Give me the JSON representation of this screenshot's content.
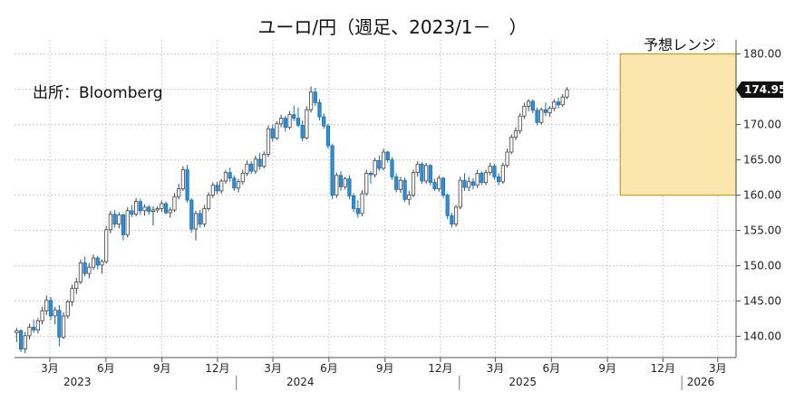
{
  "title": "ユーロ/円（週足、2023/1－　）",
  "source_note": "出所：Bloomberg",
  "range_label": "予想レンジ",
  "last_value_label": "174.95",
  "colors": {
    "up_fill": "#ffffff",
    "up_stroke": "#444444",
    "down_fill": "#2f8ed8",
    "down_stroke": "#1c6fb0",
    "forecast_fill": "#fbe7ad",
    "forecast_stroke": "#c8a02a",
    "grid": "#cfcfcf",
    "last_badge": "#111111"
  },
  "chart_data": {
    "type": "candlestick",
    "title": "ユーロ/円（週足、2023/1－　）",
    "frequency": "weekly",
    "ylim": [
      137,
      182
    ],
    "y_ticks": [
      "140.00",
      "145.00",
      "150.00",
      "155.00",
      "160.00",
      "165.00",
      "170.00",
      "175.00",
      "180.00"
    ],
    "x_ticks": [
      {
        "date": "2023-03-01",
        "label": "3月"
      },
      {
        "date": "2023-06-01",
        "label": "6月"
      },
      {
        "date": "2023-09-01",
        "label": "9月"
      },
      {
        "date": "2023-12-01",
        "label": "12月"
      },
      {
        "date": "2024-03-01",
        "label": "3月"
      },
      {
        "date": "2024-06-01",
        "label": "6月"
      },
      {
        "date": "2024-09-01",
        "label": "9月"
      },
      {
        "date": "2024-12-01",
        "label": "12月"
      },
      {
        "date": "2025-03-01",
        "label": "3月"
      },
      {
        "date": "2025-06-01",
        "label": "6月"
      },
      {
        "date": "2025-09-01",
        "label": "9月"
      },
      {
        "date": "2025-12-01",
        "label": "12月"
      },
      {
        "date": "2026-03-01",
        "label": "3月"
      }
    ],
    "year_labels": [
      {
        "date": "2023-04-15",
        "label": "2023"
      },
      {
        "date": "2024-04-15",
        "label": "2024"
      },
      {
        "date": "2025-04-15",
        "label": "2025"
      },
      {
        "date": "2026-02-01",
        "label": "2026"
      }
    ],
    "year_dividers": [
      "2024-01-01",
      "2025-01-01",
      "2026-01-01"
    ],
    "x_start": "2023-01-02",
    "x_end": "2026-03-31",
    "forecast_range": {
      "start": "2025-09-22",
      "end": "2026-03-31",
      "low": 160.0,
      "high": 180.0
    },
    "last_value": 174.95,
    "start_date": "2023-01-02",
    "ohlc": [
      [
        140.5,
        141.2,
        139.2,
        140.8
      ],
      [
        140.8,
        141.0,
        137.8,
        138.2
      ],
      [
        138.2,
        140.6,
        137.6,
        140.1
      ],
      [
        140.1,
        141.8,
        139.6,
        141.3
      ],
      [
        141.3,
        142.4,
        140.5,
        140.9
      ],
      [
        140.9,
        142.6,
        140.4,
        142.2
      ],
      [
        142.2,
        144.2,
        141.7,
        143.6
      ],
      [
        143.6,
        145.8,
        143.0,
        145.1
      ],
      [
        145.1,
        145.6,
        142.3,
        142.9
      ],
      [
        142.9,
        144.2,
        141.7,
        143.7
      ],
      [
        143.7,
        144.4,
        138.6,
        139.9
      ],
      [
        139.9,
        143.4,
        139.6,
        142.9
      ],
      [
        142.9,
        145.2,
        142.5,
        144.9
      ],
      [
        144.9,
        147.3,
        144.3,
        146.8
      ],
      [
        146.8,
        148.3,
        146.0,
        147.7
      ],
      [
        147.7,
        150.9,
        147.4,
        150.4
      ],
      [
        150.4,
        151.3,
        148.5,
        148.9
      ],
      [
        148.9,
        150.4,
        148.2,
        149.8
      ],
      [
        149.8,
        151.6,
        149.4,
        151.1
      ],
      [
        151.1,
        151.4,
        149.5,
        150.1
      ],
      [
        150.1,
        150.9,
        148.9,
        150.6
      ],
      [
        150.6,
        155.6,
        150.3,
        155.1
      ],
      [
        155.1,
        157.8,
        154.6,
        157.3
      ],
      [
        157.3,
        157.9,
        155.4,
        155.9
      ],
      [
        155.9,
        157.6,
        155.3,
        157.2
      ],
      [
        157.2,
        157.4,
        153.6,
        154.4
      ],
      [
        154.4,
        158.3,
        154.0,
        157.8
      ],
      [
        157.8,
        158.6,
        156.9,
        157.3
      ],
      [
        157.3,
        159.6,
        157.0,
        159.1
      ],
      [
        159.1,
        159.5,
        157.2,
        157.8
      ],
      [
        157.8,
        158.7,
        157.1,
        158.3
      ],
      [
        158.3,
        158.6,
        157.2,
        157.7
      ],
      [
        157.7,
        158.4,
        155.7,
        157.9
      ],
      [
        157.9,
        158.4,
        157.5,
        158.1
      ],
      [
        158.1,
        159.2,
        157.6,
        158.8
      ],
      [
        158.8,
        159.1,
        157.3,
        157.5
      ],
      [
        157.5,
        158.3,
        156.8,
        157.9
      ],
      [
        157.9,
        160.3,
        157.6,
        159.8
      ],
      [
        159.8,
        161.6,
        159.4,
        160.9
      ],
      [
        160.9,
        164.1,
        160.6,
        163.6
      ],
      [
        163.6,
        164.3,
        158.9,
        159.3
      ],
      [
        159.3,
        159.6,
        154.7,
        155.2
      ],
      [
        155.2,
        157.8,
        153.6,
        157.4
      ],
      [
        157.4,
        157.9,
        155.4,
        155.9
      ],
      [
        155.9,
        158.6,
        155.5,
        158.1
      ],
      [
        158.1,
        160.4,
        157.8,
        160.0
      ],
      [
        160.0,
        161.8,
        159.6,
        161.4
      ],
      [
        161.4,
        161.9,
        160.1,
        160.6
      ],
      [
        160.6,
        162.3,
        160.2,
        162.0
      ],
      [
        162.0,
        163.6,
        161.6,
        163.2
      ],
      [
        163.2,
        163.9,
        161.9,
        162.4
      ],
      [
        162.4,
        162.8,
        160.6,
        161.0
      ],
      [
        161.0,
        162.3,
        160.4,
        161.9
      ],
      [
        161.9,
        163.6,
        161.5,
        163.1
      ],
      [
        163.1,
        164.9,
        162.7,
        164.4
      ],
      [
        164.4,
        164.8,
        163.0,
        163.4
      ],
      [
        163.4,
        165.6,
        163.0,
        165.1
      ],
      [
        165.1,
        166.0,
        163.6,
        164.1
      ],
      [
        164.1,
        166.2,
        163.8,
        165.8
      ],
      [
        165.8,
        169.9,
        165.4,
        169.4
      ],
      [
        169.4,
        170.0,
        167.6,
        168.1
      ],
      [
        168.1,
        170.5,
        167.8,
        170.1
      ],
      [
        170.1,
        171.4,
        169.6,
        170.9
      ],
      [
        170.9,
        171.2,
        169.0,
        169.6
      ],
      [
        169.6,
        171.9,
        169.3,
        171.4
      ],
      [
        171.4,
        172.7,
        170.5,
        170.9
      ],
      [
        170.9,
        172.4,
        169.6,
        169.9
      ],
      [
        169.9,
        170.6,
        167.6,
        168.1
      ],
      [
        168.1,
        172.6,
        167.9,
        172.1
      ],
      [
        172.1,
        175.4,
        171.7,
        174.6
      ],
      [
        174.6,
        175.2,
        172.6,
        173.1
      ],
      [
        173.1,
        173.6,
        170.6,
        171.1
      ],
      [
        171.1,
        171.6,
        169.4,
        169.8
      ],
      [
        169.8,
        170.1,
        166.6,
        167.0
      ],
      [
        167.0,
        167.3,
        159.4,
        160.0
      ],
      [
        160.0,
        163.2,
        159.6,
        162.8
      ],
      [
        162.8,
        163.4,
        160.6,
        161.2
      ],
      [
        161.2,
        162.6,
        160.8,
        162.3
      ],
      [
        162.3,
        162.8,
        159.4,
        159.9
      ],
      [
        159.9,
        160.3,
        157.6,
        158.1
      ],
      [
        158.1,
        159.3,
        156.8,
        157.4
      ],
      [
        157.4,
        160.7,
        157.0,
        160.2
      ],
      [
        160.2,
        163.6,
        159.9,
        163.1
      ],
      [
        163.1,
        163.4,
        161.6,
        162.9
      ],
      [
        162.9,
        165.3,
        162.5,
        164.9
      ],
      [
        164.9,
        165.6,
        163.4,
        163.8
      ],
      [
        163.8,
        166.6,
        163.5,
        166.1
      ],
      [
        166.1,
        166.3,
        164.6,
        165.0
      ],
      [
        165.0,
        165.4,
        162.2,
        162.6
      ],
      [
        162.6,
        163.1,
        160.4,
        160.8
      ],
      [
        160.8,
        162.6,
        160.3,
        162.1
      ],
      [
        162.1,
        162.5,
        159.0,
        159.4
      ],
      [
        159.4,
        160.6,
        158.6,
        160.0
      ],
      [
        160.0,
        163.6,
        159.7,
        163.2
      ],
      [
        163.2,
        164.8,
        162.6,
        164.4
      ],
      [
        164.4,
        164.7,
        161.6,
        162.0
      ],
      [
        162.0,
        164.6,
        161.6,
        164.2
      ],
      [
        164.2,
        164.4,
        161.4,
        161.8
      ],
      [
        161.8,
        162.3,
        160.6,
        160.9
      ],
      [
        160.9,
        162.8,
        160.5,
        162.4
      ],
      [
        162.4,
        162.6,
        159.6,
        160.0
      ],
      [
        160.0,
        160.2,
        156.6,
        157.1
      ],
      [
        157.1,
        157.5,
        155.4,
        155.9
      ],
      [
        155.9,
        158.6,
        155.5,
        158.3
      ],
      [
        158.3,
        162.6,
        158.0,
        162.1
      ],
      [
        162.1,
        163.1,
        160.6,
        161.1
      ],
      [
        161.1,
        162.6,
        160.6,
        161.9
      ],
      [
        161.9,
        162.4,
        160.8,
        161.4
      ],
      [
        161.4,
        163.6,
        161.0,
        163.1
      ],
      [
        163.1,
        163.4,
        161.4,
        161.8
      ],
      [
        161.8,
        163.6,
        161.4,
        163.2
      ],
      [
        163.2,
        164.6,
        162.8,
        164.1
      ],
      [
        164.1,
        164.4,
        162.2,
        162.6
      ],
      [
        162.6,
        163.1,
        161.4,
        161.9
      ],
      [
        161.9,
        164.6,
        161.6,
        164.2
      ],
      [
        164.2,
        166.6,
        163.9,
        166.1
      ],
      [
        166.1,
        168.6,
        165.8,
        168.2
      ],
      [
        168.2,
        169.6,
        167.8,
        169.1
      ],
      [
        169.1,
        171.6,
        168.7,
        171.2
      ],
      [
        171.2,
        173.1,
        170.8,
        172.6
      ],
      [
        172.6,
        173.6,
        171.9,
        173.3
      ],
      [
        173.3,
        173.6,
        171.6,
        172.0
      ],
      [
        172.0,
        172.4,
        169.9,
        170.3
      ],
      [
        170.3,
        172.4,
        170.0,
        172.1
      ],
      [
        172.1,
        173.1,
        171.2,
        171.7
      ],
      [
        171.7,
        172.6,
        171.1,
        172.3
      ],
      [
        172.3,
        173.6,
        171.9,
        173.2
      ],
      [
        173.2,
        173.8,
        172.3,
        172.8
      ],
      [
        172.8,
        174.3,
        172.5,
        173.9
      ],
      [
        173.9,
        175.3,
        173.6,
        174.95
      ]
    ]
  }
}
